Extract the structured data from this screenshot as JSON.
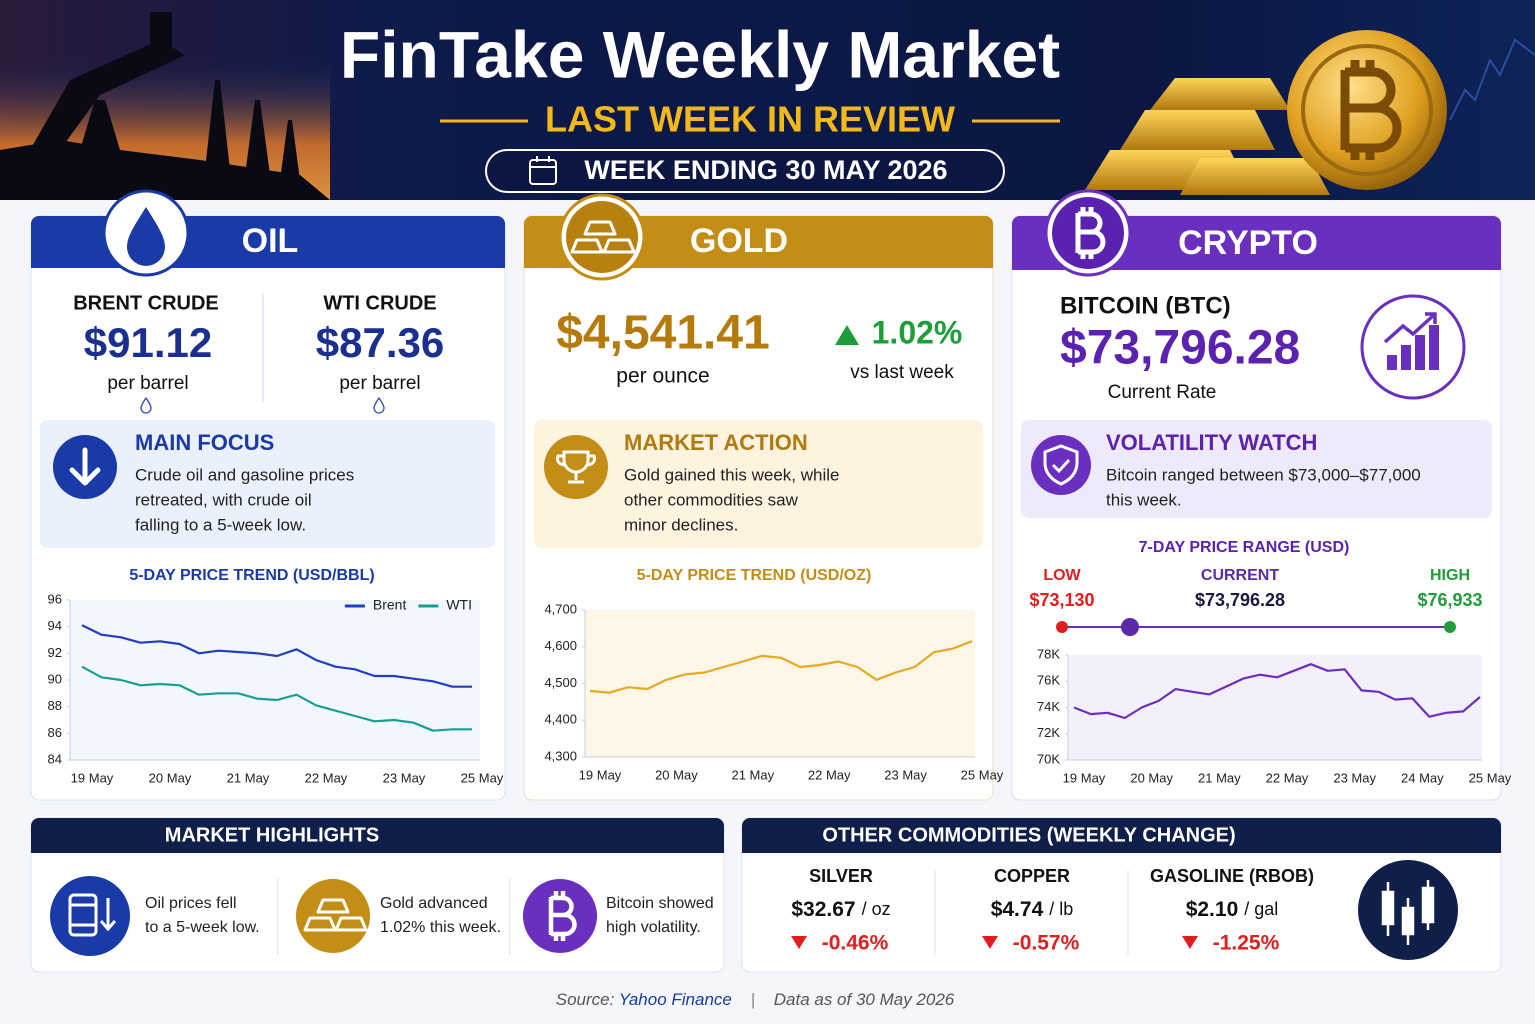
{
  "header": {
    "title": "FinTake Weekly Market",
    "subtitle": "LAST WEEK IN REVIEW",
    "week": "WEEK ENDING 30 MAY 2026"
  },
  "oil": {
    "heading": "OIL",
    "brent": {
      "name": "BRENT CRUDE",
      "price": "$91.12",
      "unit": "per barrel"
    },
    "wti": {
      "name": "WTI CRUDE",
      "price": "$87.36",
      "unit": "per barrel"
    },
    "focus": {
      "title": "MAIN FOCUS",
      "lines": [
        "Crude oil and gasoline prices",
        "retreated, with crude oil",
        "falling to a 5-week low."
      ]
    }
  },
  "gold": {
    "heading": "GOLD",
    "price": "$4,541.41",
    "unit": "per ounce",
    "change": "1.02%",
    "change_note": "vs last week",
    "action": {
      "title": "MARKET ACTION",
      "lines": [
        "Gold gained this week, while",
        "other commodities saw",
        "minor declines."
      ]
    }
  },
  "crypto": {
    "heading": "CRYPTO",
    "name": "BITCOIN (BTC)",
    "price": "$73,796.28",
    "price_note": "Current Rate",
    "watch": {
      "title": "VOLATILITY WATCH",
      "lines": [
        "Bitcoin ranged between $73,000–$77,000",
        "this week."
      ]
    },
    "range": {
      "title": "7-DAY PRICE RANGE (USD)",
      "labels": [
        "LOW",
        "CURRENT",
        "HIGH"
      ],
      "values": [
        73130,
        73796.28,
        76933
      ],
      "value_labels": [
        "$73,130",
        "$73,796.28",
        "$76,933"
      ],
      "colors": [
        "#e01e1e",
        "#5b2aa8",
        "#1e9e3a"
      ]
    }
  },
  "highlights": {
    "title": "MARKET HIGHLIGHTS",
    "items": [
      {
        "lines": [
          "Oil prices fell",
          "to a 5-week low."
        ]
      },
      {
        "lines": [
          "Gold advanced",
          "1.02% this week."
        ]
      },
      {
        "lines": [
          "Bitcoin showed",
          "high volatility."
        ]
      }
    ]
  },
  "commodities": {
    "title": "OTHER COMMODITIES (WEEKLY CHANGE)",
    "items": [
      {
        "name": "SILVER",
        "price": "$32.67",
        "unit": "/ oz",
        "change": "-0.46%"
      },
      {
        "name": "COPPER",
        "price": "$4.74",
        "unit": "/ lb",
        "change": "-0.57%"
      },
      {
        "name": "GASOLINE (RBOB)",
        "price": "$2.10",
        "unit": "/ gal",
        "change": "-1.25%"
      }
    ]
  },
  "footer": {
    "source_label": "Source:",
    "source": "Yahoo Finance",
    "separator": "|",
    "note": "Data as of 30 May 2026"
  },
  "chart_data": [
    {
      "type": "line",
      "title": "5-DAY PRICE TREND (USD/BBL)",
      "categories": [
        "19 May",
        null,
        null,
        null,
        "20 May",
        null,
        null,
        null,
        "21 May",
        null,
        null,
        null,
        "22 May",
        null,
        null,
        null,
        "23 May",
        null,
        null,
        null,
        "25 May"
      ],
      "series": [
        {
          "name": "Brent",
          "color": "#1f3fbf",
          "values": [
            94.1,
            93.4,
            93.2,
            92.8,
            92.9,
            92.7,
            92.0,
            92.2,
            92.1,
            92.0,
            91.8,
            92.3,
            91.5,
            91.0,
            90.8,
            90.3,
            90.3,
            90.1,
            89.9,
            89.5,
            89.5
          ]
        },
        {
          "name": "WTI",
          "color": "#1a9e94",
          "values": [
            91.0,
            90.2,
            90.0,
            89.6,
            89.7,
            89.6,
            88.9,
            89.0,
            89.0,
            88.6,
            88.5,
            88.9,
            88.1,
            87.7,
            87.3,
            86.9,
            87.0,
            86.8,
            86.2,
            86.3,
            86.3
          ]
        }
      ],
      "ylim": [
        84,
        96
      ],
      "yticks": [
        84,
        86,
        88,
        90,
        92,
        94,
        96
      ],
      "legend": "upper right",
      "grid": false
    },
    {
      "type": "line",
      "title": "5-DAY PRICE TREND (USD/OZ)",
      "categories": [
        "19 May",
        null,
        null,
        null,
        "20 May",
        null,
        null,
        null,
        "21 May",
        null,
        null,
        null,
        "22 May",
        null,
        null,
        null,
        "23 May",
        null,
        null,
        null,
        "25 May"
      ],
      "values": [
        4480,
        4475,
        4490,
        4485,
        4510,
        4525,
        4530,
        4545,
        4560,
        4575,
        4570,
        4545,
        4550,
        4560,
        4545,
        4510,
        4530,
        4545,
        4585,
        4595,
        4615
      ],
      "color": "#e8a820",
      "ylim": [
        4300,
        4700
      ],
      "yticks": [
        {
          "value": 4300,
          "label": "4,300"
        },
        {
          "value": 4400,
          "label": "4,400"
        },
        {
          "value": 4500,
          "label": "4,500"
        },
        {
          "value": 4600,
          "label": "4,600"
        },
        {
          "value": 4700,
          "label": "4,700"
        }
      ],
      "grid": false
    },
    {
      "type": "line",
      "categories": [
        "19 May",
        null,
        null,
        null,
        "20 May",
        null,
        null,
        null,
        "21 May",
        null,
        null,
        null,
        "22 May",
        null,
        null,
        null,
        "23 May",
        null,
        null,
        null,
        "24 May",
        null,
        null,
        null,
        "25 May"
      ],
      "values": [
        74000,
        73500,
        73600,
        73200,
        74000,
        74500,
        75400,
        75200,
        75000,
        75600,
        76200,
        76500,
        76300,
        76800,
        77300,
        76800,
        76900,
        75300,
        75200,
        74600,
        74700,
        73300,
        73600,
        73700,
        74800
      ],
      "color": "#6a2fbf",
      "ylim": [
        70000,
        78000
      ],
      "yticks": [
        {
          "value": 70000,
          "label": "70K"
        },
        {
          "value": 72000,
          "label": "72K"
        },
        {
          "value": 74000,
          "label": "74K"
        },
        {
          "value": 76000,
          "label": "76K"
        },
        {
          "value": 78000,
          "label": "78K"
        }
      ],
      "grid": false
    }
  ]
}
